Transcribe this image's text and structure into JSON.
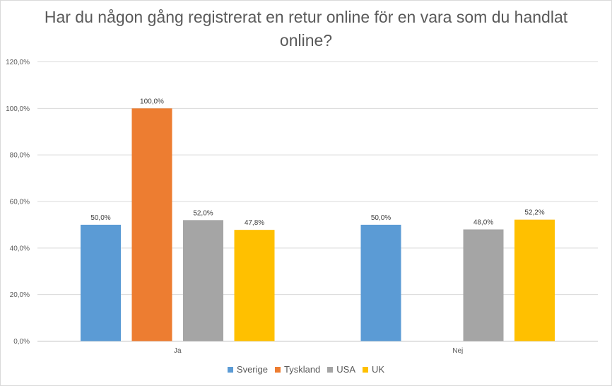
{
  "chart_data": {
    "type": "bar",
    "title": "Har du någon gång registrerat en retur online för en vara som du handlat online?",
    "categories": [
      "Ja",
      "Nej"
    ],
    "series": [
      {
        "name": "Sverige",
        "color": "#5b9bd5",
        "values": [
          50.0,
          50.0
        ],
        "labels": [
          "50,0%",
          "50,0%"
        ]
      },
      {
        "name": "Tyskland",
        "color": "#ed7d31",
        "values": [
          100.0,
          null
        ],
        "labels": [
          "100,0%",
          null
        ]
      },
      {
        "name": "USA",
        "color": "#a5a5a5",
        "values": [
          52.0,
          48.0
        ],
        "labels": [
          "52,0%",
          "48,0%"
        ]
      },
      {
        "name": "UK",
        "color": "#ffc000",
        "values": [
          47.8,
          52.2
        ],
        "labels": [
          "47,8%",
          "52,2%"
        ]
      }
    ],
    "ylim": [
      0,
      120
    ],
    "yticks": [
      0,
      20,
      40,
      60,
      80,
      100,
      120
    ],
    "ytick_labels": [
      "0,0%",
      "20,0%",
      "40,0%",
      "60,0%",
      "80,0%",
      "100,0%",
      "120,0%"
    ],
    "grid": true,
    "legend_position": "bottom"
  }
}
